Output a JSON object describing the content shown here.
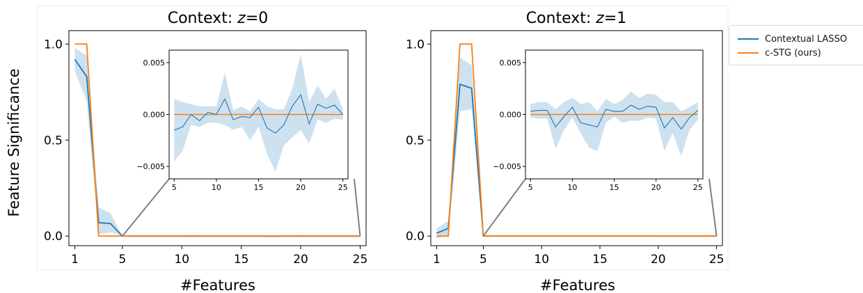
{
  "chart_data": [
    {
      "type": "line",
      "title": "Context: z=0",
      "title_parts": {
        "prefix": "Context: ",
        "var": "z",
        "suffix": "=0"
      },
      "xlabel": "#Features",
      "ylabel": "Feature Significance",
      "xlim": [
        0.5,
        25.5
      ],
      "ylim": [
        -0.05,
        1.07
      ],
      "xticks": [
        1,
        5,
        10,
        15,
        20,
        25
      ],
      "yticks": [
        0.0,
        0.5,
        1.0
      ],
      "x": [
        1,
        2,
        3,
        4,
        5,
        6,
        7,
        8,
        9,
        10,
        11,
        12,
        13,
        14,
        15,
        16,
        17,
        18,
        19,
        20,
        21,
        22,
        23,
        24,
        25
      ],
      "series": [
        {
          "name": "Contextual LASSO",
          "color": "#1f77b4",
          "values": [
            0.92,
            0.83,
            0.07,
            0.065,
            0.0,
            0.0,
            0.0,
            0.0,
            0.0,
            0.0,
            0.0,
            0.0,
            0.0,
            0.0,
            0.0,
            0.0,
            0.0,
            0.0,
            0.0,
            0.0,
            0.0,
            0.0,
            0.0,
            0.0,
            0.0
          ],
          "band_low": [
            0.86,
            0.7,
            0.01,
            0.02,
            0.0,
            -0.005,
            -0.005,
            -0.005,
            -0.005,
            -0.005,
            -0.005,
            -0.005,
            -0.005,
            -0.005,
            -0.005,
            -0.005,
            -0.006,
            -0.006,
            -0.005,
            -0.005,
            -0.005,
            -0.005,
            -0.005,
            -0.005,
            -0.005
          ],
          "band_high": [
            0.98,
            0.94,
            0.15,
            0.12,
            0.0,
            0.005,
            0.005,
            0.005,
            0.005,
            0.005,
            0.006,
            0.005,
            0.005,
            0.005,
            0.005,
            0.005,
            0.004,
            0.004,
            0.005,
            0.006,
            0.005,
            0.005,
            0.005,
            0.005,
            0.005
          ]
        },
        {
          "name": "c-STG (ours)",
          "color": "#ff7f0e",
          "values": [
            1.0,
            1.0,
            0.0,
            0.0,
            0.0,
            0.0,
            0.0,
            0.0,
            0.0,
            0.0,
            0.0,
            0.0,
            0.0,
            0.0,
            0.0,
            0.0,
            0.0,
            0.0,
            0.0,
            0.0,
            0.0,
            0.0,
            0.0,
            0.0,
            0.0
          ]
        }
      ],
      "inset": {
        "xlim": [
          4.4,
          25.6
        ],
        "ylim": [
          -0.0062,
          0.0062
        ],
        "xticks": [
          5,
          10,
          15,
          20,
          25
        ],
        "yticks": [
          -0.005,
          0.0,
          0.005
        ],
        "ytick_labels": [
          "−0.005",
          "0.000",
          "0.005"
        ],
        "x": [
          5,
          6,
          7,
          8,
          9,
          10,
          11,
          12,
          13,
          14,
          15,
          16,
          17,
          18,
          19,
          20,
          21,
          22,
          23,
          24,
          25
        ],
        "lasso_mean": [
          -0.0015,
          -0.0012,
          0.0,
          -0.0006,
          0.0002,
          0.0,
          0.0015,
          -0.0005,
          -0.0002,
          -0.0003,
          0.0007,
          -0.0013,
          -0.0018,
          -0.001,
          0.0008,
          0.0019,
          -0.0009,
          0.001,
          0.0006,
          0.0009,
          0.0
        ],
        "lasso_low": [
          -0.0045,
          -0.0035,
          -0.001,
          -0.0012,
          -0.0008,
          -0.0008,
          -0.001,
          -0.0015,
          -0.0012,
          -0.0025,
          -0.0012,
          -0.0038,
          -0.0055,
          -0.003,
          -0.0022,
          -0.0015,
          -0.0028,
          -0.0005,
          -0.0008,
          -0.0004,
          -0.0005
        ],
        "lasso_high": [
          0.0015,
          0.0012,
          0.001,
          0.0008,
          0.0008,
          0.0008,
          0.004,
          0.0004,
          0.0008,
          0.0003,
          0.0015,
          0.0008,
          0.0005,
          0.0005,
          0.0025,
          0.0058,
          0.0012,
          0.0028,
          0.0015,
          0.0025,
          0.0005
        ],
        "stg": [
          0,
          0,
          0,
          0,
          0,
          0,
          0,
          0,
          0,
          0,
          0,
          0,
          0,
          0,
          0,
          0,
          0,
          0,
          0,
          0,
          0
        ]
      }
    },
    {
      "type": "line",
      "title": "Context: z=1",
      "title_parts": {
        "prefix": "Context: ",
        "var": "z",
        "suffix": "=1"
      },
      "xlabel": "#Features",
      "ylabel": "",
      "xlim": [
        0.5,
        25.5
      ],
      "ylim": [
        -0.05,
        1.07
      ],
      "xticks": [
        1,
        5,
        10,
        15,
        20,
        25
      ],
      "yticks": [
        0.0,
        0.5,
        1.0
      ],
      "x": [
        1,
        2,
        3,
        4,
        5,
        6,
        7,
        8,
        9,
        10,
        11,
        12,
        13,
        14,
        15,
        16,
        17,
        18,
        19,
        20,
        21,
        22,
        23,
        24,
        25
      ],
      "series": [
        {
          "name": "Contextual LASSO",
          "color": "#1f77b4",
          "values": [
            0.015,
            0.04,
            0.79,
            0.77,
            0.0,
            0.0,
            0.0,
            0.0,
            0.0,
            0.0,
            0.0,
            0.0,
            0.0,
            0.0,
            0.0,
            0.0,
            0.0,
            0.0,
            0.0,
            0.0,
            0.0,
            0.0,
            0.0,
            0.0,
            0.0
          ],
          "band_low": [
            -0.01,
            0.0,
            0.65,
            0.66,
            0.0,
            -0.003,
            -0.003,
            -0.003,
            -0.003,
            -0.003,
            -0.003,
            -0.003,
            -0.003,
            -0.003,
            -0.003,
            -0.003,
            -0.003,
            -0.003,
            -0.003,
            -0.003,
            -0.004,
            -0.003,
            -0.004,
            -0.003,
            -0.003
          ],
          "band_high": [
            0.04,
            0.08,
            0.93,
            0.89,
            0.0,
            0.003,
            0.003,
            0.003,
            0.003,
            0.003,
            0.003,
            0.003,
            0.003,
            0.003,
            0.003,
            0.003,
            0.003,
            0.003,
            0.003,
            0.003,
            0.003,
            0.003,
            0.003,
            0.003,
            0.003
          ]
        },
        {
          "name": "c-STG (ours)",
          "color": "#ff7f0e",
          "values": [
            0.0,
            0.0,
            1.0,
            1.0,
            0.0,
            0.0,
            0.0,
            0.0,
            0.0,
            0.0,
            0.0,
            0.0,
            0.0,
            0.0,
            0.0,
            0.0,
            0.0,
            0.0,
            0.0,
            0.0,
            0.0,
            0.0,
            0.0,
            0.0,
            0.0
          ]
        }
      ],
      "inset": {
        "xlim": [
          4.4,
          25.6
        ],
        "ylim": [
          -0.0062,
          0.0062
        ],
        "xticks": [
          5,
          10,
          15,
          20,
          25
        ],
        "yticks": [
          -0.005,
          0.0,
          0.005
        ],
        "ytick_labels": [
          "−0.005",
          "0.000",
          "0.005"
        ],
        "x": [
          5,
          6,
          7,
          8,
          9,
          10,
          11,
          12,
          13,
          14,
          15,
          16,
          17,
          18,
          19,
          20,
          21,
          22,
          23,
          24,
          25
        ],
        "lasso_mean": [
          0.0003,
          0.0004,
          0.0004,
          -0.0012,
          -0.0002,
          0.0007,
          -0.0008,
          -0.001,
          -0.0012,
          0.0005,
          0.0003,
          0.0003,
          0.0009,
          0.0005,
          0.0008,
          0.0007,
          -0.0013,
          -0.0003,
          -0.0014,
          -0.0003,
          0.0004
        ],
        "lasso_low": [
          -0.0003,
          -0.0004,
          -0.0004,
          -0.0033,
          -0.0015,
          -0.0003,
          -0.0018,
          -0.0032,
          -0.0035,
          -0.0008,
          -0.0002,
          -0.0008,
          -0.0006,
          -0.0006,
          -0.0003,
          -0.0004,
          -0.0035,
          -0.0018,
          -0.004,
          -0.0015,
          -0.0005
        ],
        "lasso_high": [
          0.001,
          0.0012,
          0.0012,
          0.0005,
          0.0012,
          0.0016,
          0.001,
          0.0012,
          0.0003,
          0.0015,
          0.001,
          0.0014,
          0.0022,
          0.0016,
          0.002,
          0.0019,
          0.0012,
          0.0012,
          0.0003,
          0.0007,
          0.0012
        ],
        "stg": [
          0,
          0,
          0,
          0,
          0,
          0,
          0,
          0,
          0,
          0,
          0,
          0,
          0,
          0,
          0,
          0,
          0,
          0,
          0,
          0,
          0
        ]
      }
    }
  ],
  "legend": {
    "position": "right",
    "items": [
      {
        "label": "Contextual LASSO",
        "color": "#1f77b4"
      },
      {
        "label": "c-STG (ours)",
        "color": "#ff7f0e"
      }
    ]
  }
}
